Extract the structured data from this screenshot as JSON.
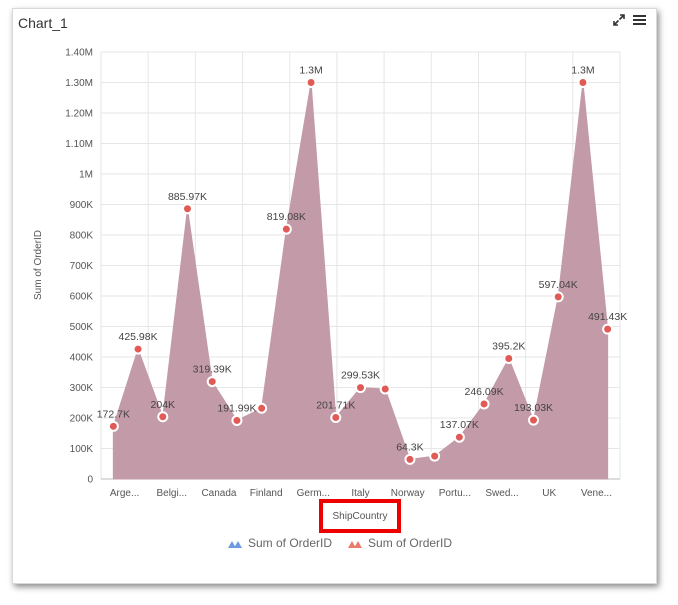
{
  "panel": {
    "title": "Chart_1",
    "icons": [
      "expand-icon",
      "menu-icon"
    ]
  },
  "colors": {
    "area": "#c39aa8",
    "marker": "#e05a56",
    "legend1": "#6d9be0",
    "legend2": "#e87c6c",
    "grid": "#e6e6e6",
    "highlight": "#ee0000"
  },
  "chart_data": {
    "type": "area",
    "ylabel": "Sum of OrderID",
    "xlabel": "ShipCountry",
    "ylim": [
      0,
      1400000
    ],
    "yticks": [
      "0",
      "100K",
      "200K",
      "300K",
      "400K",
      "500K",
      "600K",
      "700K",
      "800K",
      "900K",
      "1M",
      "1.10M",
      "1.20M",
      "1.30M",
      "1.40M"
    ],
    "categories": [
      "Arge...",
      "Belgi...",
      "Canada",
      "Finland",
      "Germ...",
      "Italy",
      "Norway",
      "Portu...",
      "Swed...",
      "UK",
      "Vene..."
    ],
    "values": [
      172700,
      425980,
      204000,
      885970,
      319390,
      191990,
      232000,
      819080,
      1300000,
      201710,
      299530,
      295000,
      64300,
      75000,
      137070,
      246090,
      395200,
      193030,
      597040,
      1300000,
      491430
    ],
    "labels": [
      "172.7K",
      "425.98K",
      "204K",
      "885.97K",
      "319.39K",
      "191.99K",
      "",
      "819.08K",
      "1.3M",
      "201.71K",
      "299.53K",
      "",
      "64.3K",
      "",
      "137.07K",
      "246.09K",
      "395.2K",
      "193.03K",
      "597.04K",
      "1.3M",
      "491.43K"
    ],
    "legend": [
      "Sum of OrderID",
      "Sum of OrderID"
    ],
    "grid": true
  }
}
